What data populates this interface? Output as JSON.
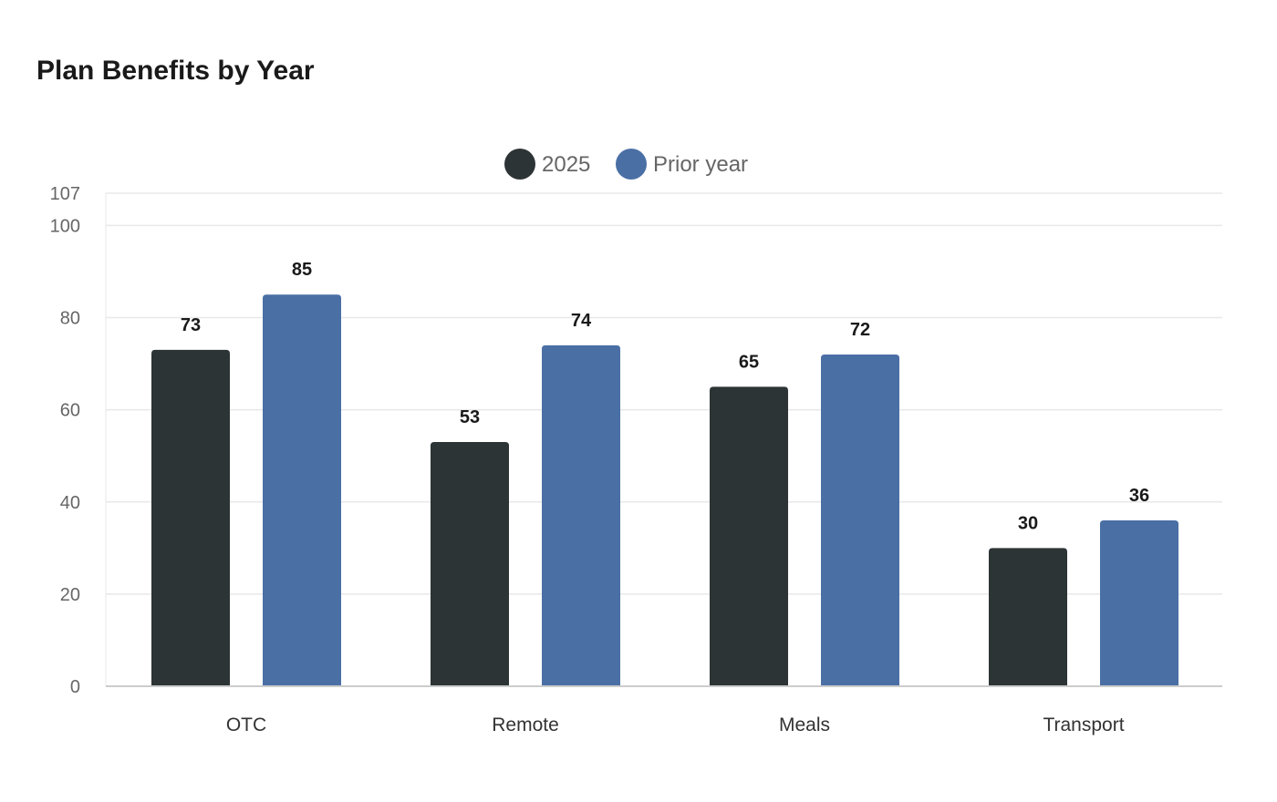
{
  "colors": {
    "series_2025": "#2d3436",
    "series_prior": "#4a6fa5",
    "grid": "#e8e8e8",
    "axis": "#cccccc"
  },
  "chart_data": {
    "type": "bar",
    "title": "Plan Benefits by Year",
    "xlabel": "",
    "ylabel": "",
    "categories": [
      "OTC",
      "Remote",
      "Meals",
      "Transport"
    ],
    "series": [
      {
        "name": "2025",
        "values": [
          73,
          53,
          65,
          30
        ]
      },
      {
        "name": "Prior year",
        "values": [
          85,
          74,
          72,
          36
        ]
      }
    ],
    "ylim": [
      0,
      107
    ],
    "yticks": [
      0,
      20,
      40,
      60,
      80,
      100,
      107
    ],
    "grid": true,
    "legend_position": "top-center",
    "data_labels": true
  }
}
